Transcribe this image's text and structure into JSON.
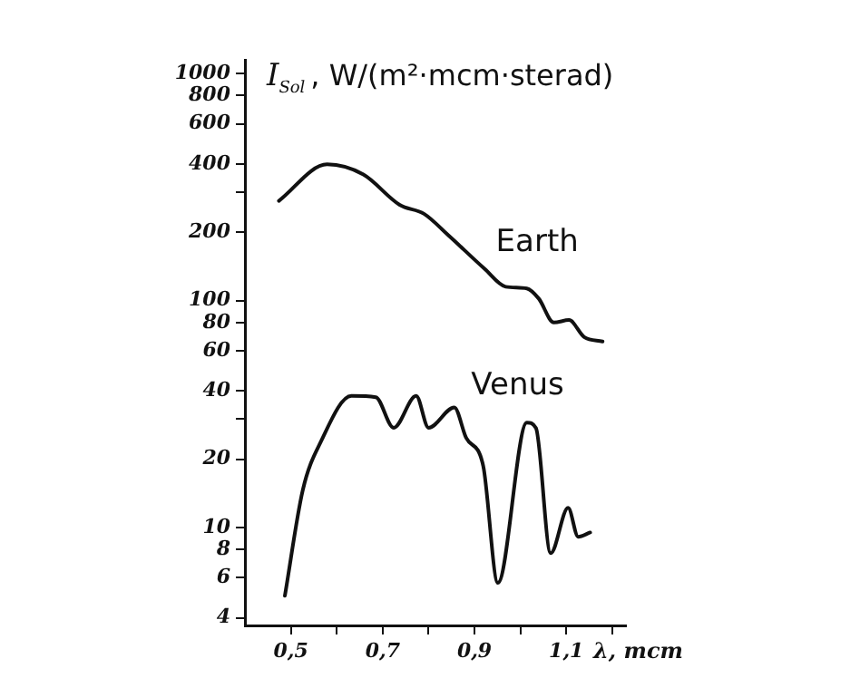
{
  "chart_data": {
    "type": "line",
    "ylabel": "I$_{Sol}$, W/(m²·mcm·sterad)",
    "xlabel": "λ, mcm",
    "log": "y",
    "grid": false,
    "legend": false,
    "marker": "none",
    "line_style": "solid",
    "xlim": [
      0.4,
      1.23
    ],
    "xticks": [
      {
        "value": 0.5,
        "label": "0,5"
      },
      {
        "value": 0.6,
        "label": null
      },
      {
        "value": 0.7,
        "label": "0,7"
      },
      {
        "value": 0.8,
        "label": null
      },
      {
        "value": 0.9,
        "label": "0,9"
      },
      {
        "value": 1.0,
        "label": null
      },
      {
        "value": 1.1,
        "label": "1,1"
      },
      {
        "value": 1.2,
        "label": null
      }
    ],
    "ylim": [
      3.7,
      1150
    ],
    "yticks": [
      4,
      6,
      8,
      10,
      20,
      {
        "value": 30,
        "label": null
      },
      40,
      60,
      80,
      100,
      200,
      {
        "value": 300,
        "label": null
      },
      400,
      600,
      800,
      1000
    ],
    "series": [
      {
        "name": "Earth",
        "color": "#111111",
        "x": [
          0.474,
          0.579,
          0.658,
          0.737,
          0.79,
          0.843,
          0.922,
          0.968,
          1.014,
          1.04,
          1.073,
          1.106,
          1.139,
          1.179
        ],
        "values": [
          275,
          398,
          359,
          264,
          241,
          194,
          138,
          115,
          113,
          102,
          80,
          82,
          69,
          66
        ]
      },
      {
        "name": "Venus",
        "color": "#111111",
        "x": [
          0.487,
          0.526,
          0.566,
          0.632,
          0.685,
          0.724,
          0.773,
          0.8,
          0.856,
          0.882,
          0.919,
          0.951,
          1.014,
          1.034,
          1.066,
          1.104,
          1.126,
          1.152
        ],
        "values": [
          5.0,
          14.6,
          24,
          38,
          37.5,
          27.5,
          38,
          27.5,
          33.8,
          24.8,
          18.7,
          5.7,
          29,
          27.4,
          7.7,
          12.2,
          9.1,
          9.5
        ]
      }
    ]
  }
}
